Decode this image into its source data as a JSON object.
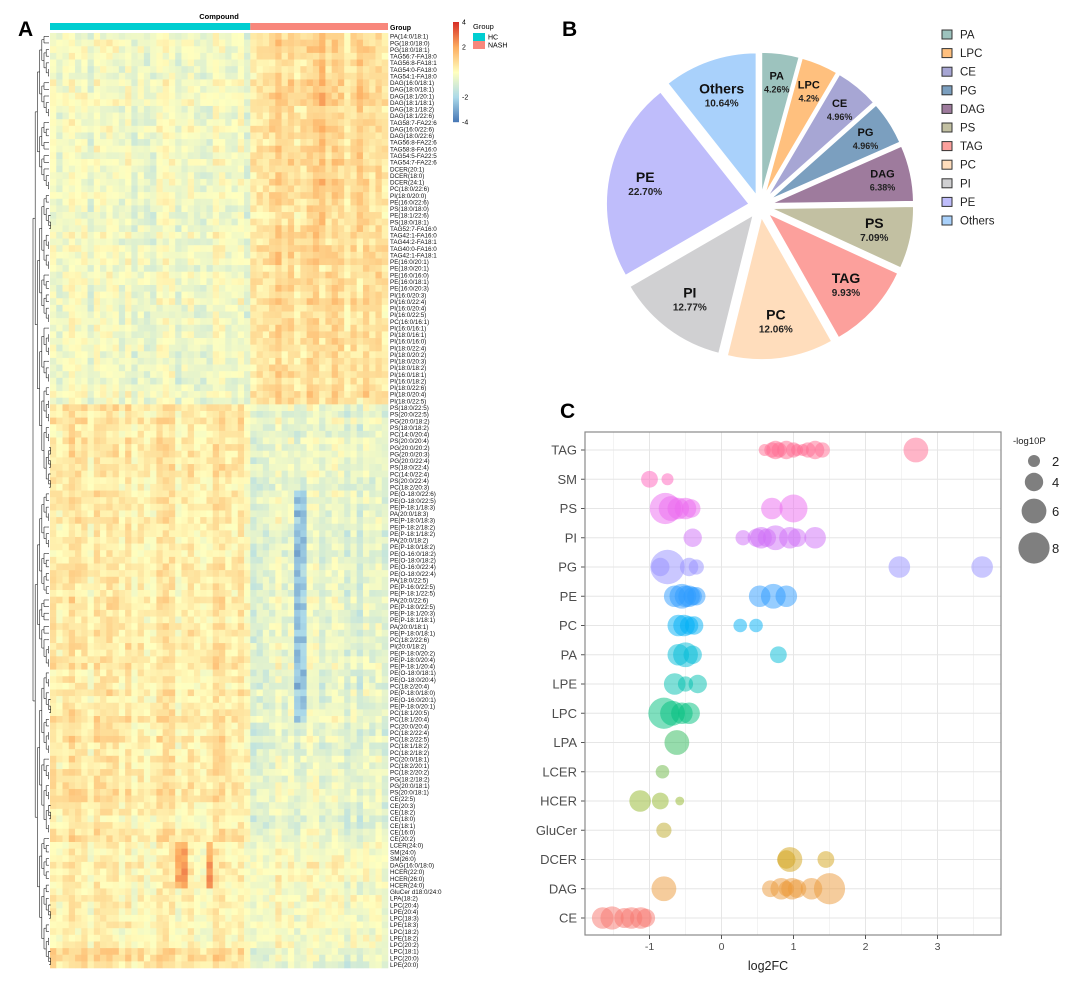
{
  "panels": {
    "a": "A",
    "b": "B",
    "c": "C"
  },
  "chart_data": [
    {
      "type": "heatmap",
      "panel": "A",
      "column_annotation_title": "Compound",
      "annotation_label": "Group",
      "groups": [
        {
          "name": "HC",
          "color": "#00CED1"
        },
        {
          "name": "NASH",
          "color": "#F8877C"
        }
      ],
      "color_scale": {
        "ticks": [
          "4",
          "2",
          "-2",
          "-4"
        ],
        "range": [
          -4,
          4
        ],
        "colors": [
          "#4575B4",
          "#ABD9E9",
          "#FFFFBF",
          "#FDAE61",
          "#D73027"
        ]
      },
      "rows": [
        "PA(14:0/18:1)",
        "PG(18:0/18:0)",
        "PG(18:0/18:1)",
        "TAG56:7-FA18:0",
        "TAG56:8-FA18:1",
        "TAG54:0-FA18:0",
        "TAG54:1-FA18:0",
        "DAG(16:0/18:1)",
        "DAG(18:0/18:1)",
        "DAG(18:1/20:1)",
        "DAG(18:1/18:1)",
        "DAG(18:1/18:2)",
        "DAG(18:1/22:6)",
        "TAG58:7-FA22:6",
        "DAG(16:0/22:6)",
        "DAG(18:0/22:6)",
        "TAG56:8-FA22:6",
        "TAG58:8-FA16:0",
        "TAG54:5-FA22:5",
        "TAG54:7-FA22:6",
        "DCER(20:1)",
        "DCER(18:0)",
        "DCER(24:1)",
        "PC(18:0/22:6)",
        "PI(18:0/20:0)",
        "PE(16:0/22:6)",
        "PS(18:0/18:0)",
        "PE(18:1/22:6)",
        "PS(18:0/18:1)",
        "TAG52:7-FA16:0",
        "TAG42:1-FA16:0",
        "TAG44:2-FA18:1",
        "TAG40:0-FA16:0",
        "TAG42:1-FA18:1",
        "PE(16:0/20:1)",
        "PE(18:0/20:1)",
        "PE(16:0/16:0)",
        "PE(16:0/18:1)",
        "PE(16:0/20:3)",
        "PI(16:0/20:3)",
        "PI(16:0/22:4)",
        "PI(16:0/20:4)",
        "PI(16:0/22:5)",
        "PC(16:0/16:1)",
        "PI(16:0/16:1)",
        "PI(18:0/16:1)",
        "PI(16:0/16:0)",
        "PI(18:0/22:4)",
        "PI(18:0/20:2)",
        "PI(18:0/20:3)",
        "PI(18:0/18:2)",
        "PI(16:0/18:1)",
        "PI(16:0/18:2)",
        "PI(18:0/22:6)",
        "PI(18:0/20:4)",
        "PI(18:0/22:5)",
        "PS(18:0/22:5)",
        "PS(20:0/22:5)",
        "PG(20:0/18:2)",
        "PS(18:0/18:2)",
        "PC(14:0/20:4)",
        "PS(20:0/20:4)",
        "PG(20:0/20:2)",
        "PG(20:0/20:3)",
        "PG(20:0/22:4)",
        "PS(18:0/22:4)",
        "PC(14:0/22:4)",
        "PS(20:0/22:4)",
        "PC(18:2/20:3)",
        "PE(O-18:0/22:6)",
        "PE(O-18:0/22:5)",
        "PE(P-18:1/18:3)",
        "PA(20:0/18:3)",
        "PE(P-18:0/18:3)",
        "PE(P-18:2/18:2)",
        "PE(P-18:1/18:2)",
        "PA(20:0/18:2)",
        "PE(P-18:0/18:2)",
        "PE(O-16:0/18:2)",
        "PE(O-18:0/18:2)",
        "PE(O-16:0/22:4)",
        "PE(O-18:0/22:4)",
        "PA(18:0/22:5)",
        "PE(P-16:0/22:5)",
        "PE(P-18:1/22:5)",
        "PA(20:0/22:6)",
        "PE(P-18:0/22:5)",
        "PE(P-18:1/20:3)",
        "PE(P-18:1/18:1)",
        "PA(20:0/18:1)",
        "PE(P-18:0/18:1)",
        "PC(18:2/22:6)",
        "PI(20:0/18:2)",
        "PE(P-18:0/20:2)",
        "PE(P-18:0/20:4)",
        "PE(P-18:1/20:4)",
        "PE(O-18:0/18:1)",
        "PE(O-18:0/20:4)",
        "PC(18:2/20:4)",
        "PE(P-18:0/18:0)",
        "PE(O-16:0/20:1)",
        "PE(P-18:0/20:1)",
        "PC(18:1/20:5)",
        "PC(18:1/20:4)",
        "PC(20:0/20:4)",
        "PC(18:2/22:4)",
        "PC(18:2/22:5)",
        "PC(18:1/18:2)",
        "PC(18:2/18:2)",
        "PC(20:0/18:1)",
        "PC(18:2/20:1)",
        "PC(18:2/20:2)",
        "PG(18:2/18:2)",
        "PG(20:0/18:1)",
        "PS(20:0/18:1)",
        "CE(22:5)",
        "CE(20:3)",
        "CE(18:2)",
        "CE(18:0)",
        "CE(18:1)",
        "CE(16:0)",
        "CE(20:2)",
        "LCER(24:0)",
        "SM(24:0)",
        "SM(26:0)",
        "DAG(16:0/18:0)",
        "HCER(22:0)",
        "HCER(26:0)",
        "HCER(24:0)",
        "GluCer d18:0/24:0",
        "LPA(18:2)",
        "LPC(20:4)",
        "LPE(20:4)",
        "LPC(18:3)",
        "LPE(18:3)",
        "LPC(18:2)",
        "LPE(18:2)",
        "LPC(20:2)",
        "LPC(18:1)",
        "LPC(20:0)",
        "LPE(20:0)"
      ]
    },
    {
      "type": "pie",
      "panel": "B",
      "slices": [
        {
          "label": "PA",
          "pct_label": "4.26%",
          "value": 4.26,
          "color": "#9DC3BE"
        },
        {
          "label": "LPC",
          "pct_label": "4.2%",
          "value": 4.2,
          "color": "#FFC07E"
        },
        {
          "label": "CE",
          "pct_label": "4.96%",
          "value": 4.96,
          "color": "#A7A6D4"
        },
        {
          "label": "PG",
          "pct_label": "4.96%",
          "value": 4.96,
          "color": "#7B9FBF"
        },
        {
          "label": "DAG",
          "pct_label": "6.38%",
          "value": 6.38,
          "color": "#9E7B9D"
        },
        {
          "label": "PS",
          "pct_label": "7.09%",
          "value": 7.09,
          "color": "#C2C0A2"
        },
        {
          "label": "TAG",
          "pct_label": "9.93%",
          "value": 9.93,
          "color": "#FCA09C"
        },
        {
          "label": "PC",
          "pct_label": "12.06%",
          "value": 12.06,
          "color": "#FFDDBC"
        },
        {
          "label": "PI",
          "pct_label": "12.77%",
          "value": 12.77,
          "color": "#D0D0D2"
        },
        {
          "label": "PE",
          "pct_label": "22.70%",
          "value": 22.7,
          "color": "#BFBDFB"
        },
        {
          "label": "Others",
          "pct_label": "10.64%",
          "value": 10.64,
          "color": "#A9D1FB"
        }
      ],
      "legend_placement": "right"
    },
    {
      "type": "scatter",
      "panel": "C",
      "xlabel": "log2FC",
      "xlim": [
        -1.88,
        3.86
      ],
      "x_ticks": [
        "-1",
        "0",
        "1",
        "2",
        "3"
      ],
      "grid": true,
      "size_legend": {
        "title": "-log10P",
        "values": [
          "2",
          "4",
          "6",
          "8"
        ]
      },
      "categories": [
        {
          "name": "TAG",
          "color": "#FF6C91",
          "points": [
            [
              0.6,
              2
            ],
            [
              0.7,
              3
            ],
            [
              0.75,
              4
            ],
            [
              0.8,
              3
            ],
            [
              0.9,
              4
            ],
            [
              1.0,
              3
            ],
            [
              1.05,
              2
            ],
            [
              1.13,
              2
            ],
            [
              1.2,
              3
            ],
            [
              1.3,
              4
            ],
            [
              1.4,
              3
            ],
            [
              2.7,
              6
            ]
          ]
        },
        {
          "name": "SM",
          "color": "#FF62BC",
          "points": [
            [
              -1.0,
              3.5
            ],
            [
              -0.75,
              2
            ]
          ]
        },
        {
          "name": "PS",
          "color": "#EC69EF",
          "points": [
            [
              -0.78,
              8
            ],
            [
              -0.7,
              6
            ],
            [
              -0.6,
              5
            ],
            [
              -0.5,
              5
            ],
            [
              -0.42,
              4
            ],
            [
              0.7,
              5
            ],
            [
              1.0,
              7
            ]
          ]
        },
        {
          "name": "PI",
          "color": "#CF6FF7",
          "points": [
            [
              -0.4,
              4
            ],
            [
              0.3,
              3
            ],
            [
              0.49,
              4
            ],
            [
              0.55,
              5
            ],
            [
              0.63,
              4
            ],
            [
              0.75,
              6
            ],
            [
              0.95,
              5
            ],
            [
              1.05,
              4
            ],
            [
              1.3,
              5
            ]
          ]
        },
        {
          "name": "PG",
          "color": "#9590FF",
          "points": [
            [
              -0.75,
              9
            ],
            [
              -0.85,
              4
            ],
            [
              -0.45,
              4
            ],
            [
              -0.35,
              3
            ],
            [
              2.47,
              5
            ],
            [
              3.62,
              5
            ]
          ]
        },
        {
          "name": "PE",
          "color": "#2E9BFF",
          "points": [
            [
              -0.65,
              5
            ],
            [
              -0.55,
              6
            ],
            [
              -0.5,
              5
            ],
            [
              -0.45,
              5
            ],
            [
              -0.4,
              4
            ],
            [
              -0.35,
              4
            ],
            [
              0.53,
              5
            ],
            [
              0.72,
              6
            ],
            [
              0.9,
              5
            ]
          ]
        },
        {
          "name": "PC",
          "color": "#00B0F6",
          "points": [
            [
              -0.6,
              5
            ],
            [
              -0.52,
              5
            ],
            [
              -0.45,
              4
            ],
            [
              -0.38,
              4
            ],
            [
              0.26,
              2.5
            ],
            [
              0.48,
              2.5
            ]
          ]
        },
        {
          "name": "PA",
          "color": "#00BCD8",
          "points": [
            [
              -0.6,
              5
            ],
            [
              -0.5,
              6
            ],
            [
              -0.4,
              4
            ],
            [
              0.79,
              3.5
            ]
          ]
        },
        {
          "name": "LPE",
          "color": "#00C0B0",
          "points": [
            [
              -0.65,
              5
            ],
            [
              -0.5,
              3
            ],
            [
              -0.33,
              4
            ]
          ]
        },
        {
          "name": "LPC",
          "color": "#00BF7D",
          "points": [
            [
              -0.8,
              8
            ],
            [
              -0.68,
              6
            ],
            [
              -0.55,
              5
            ],
            [
              -0.45,
              5
            ]
          ]
        },
        {
          "name": "LPA",
          "color": "#2DBA5A",
          "points": [
            [
              -0.62,
              6
            ]
          ]
        },
        {
          "name": "LCER",
          "color": "#6BB845",
          "points": [
            [
              -0.82,
              2.5
            ]
          ]
        },
        {
          "name": "HCER",
          "color": "#94B82C",
          "points": [
            [
              -1.13,
              5
            ],
            [
              -0.85,
              3.5
            ],
            [
              -0.58,
              1
            ]
          ]
        },
        {
          "name": "GluCer",
          "color": "#BDAA2A",
          "points": [
            [
              -0.8,
              3
            ]
          ]
        },
        {
          "name": "DCER",
          "color": "#D4A31A",
          "points": [
            [
              0.9,
              4
            ],
            [
              0.95,
              6
            ],
            [
              1.45,
              3.5
            ]
          ]
        },
        {
          "name": "DAG",
          "color": "#EB9A3A",
          "points": [
            [
              -0.8,
              6
            ],
            [
              0.68,
              3.5
            ],
            [
              0.83,
              5
            ],
            [
              0.9,
              3
            ],
            [
              0.98,
              5
            ],
            [
              1.05,
              4
            ],
            [
              1.25,
              5
            ],
            [
              1.5,
              8
            ]
          ]
        },
        {
          "name": "CE",
          "color": "#F8766D",
          "points": [
            [
              -1.65,
              5
            ],
            [
              -1.52,
              5.5
            ],
            [
              -1.35,
              4.5
            ],
            [
              -1.25,
              5
            ],
            [
              -1.12,
              5
            ],
            [
              -1.05,
              4
            ]
          ]
        }
      ]
    }
  ]
}
